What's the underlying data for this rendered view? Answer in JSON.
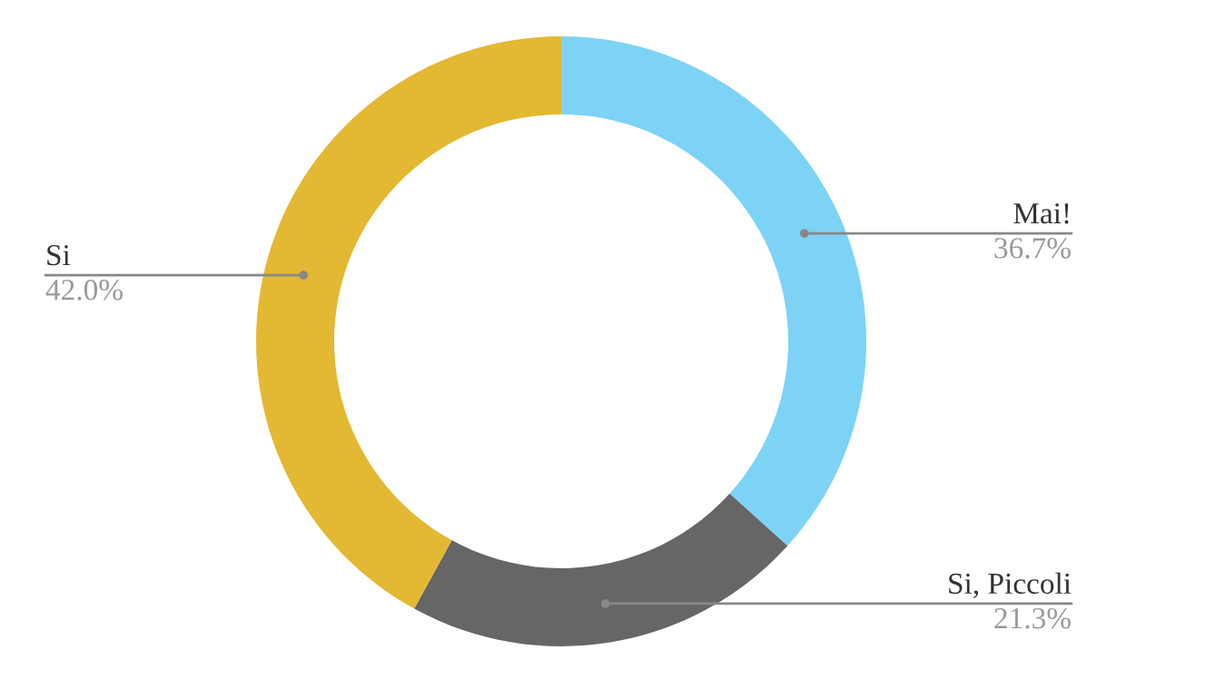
{
  "chart_data": {
    "type": "donut",
    "categories": [
      "Mai!",
      "Si, Piccoli",
      "Si"
    ],
    "values": [
      36.7,
      21.3,
      42.0
    ],
    "colors": [
      "#7dd3f5",
      "#666666",
      "#e3b832"
    ],
    "value_labels": [
      "36.7%",
      "21.3%",
      "42.0%"
    ],
    "legend": false
  }
}
